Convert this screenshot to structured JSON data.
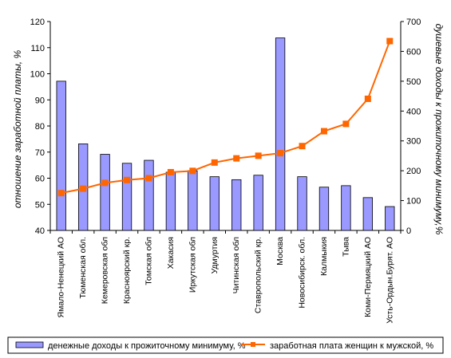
{
  "chart_data": {
    "type": "bar+line",
    "categories": [
      "Ямало-Ненецкий АО",
      "Тюменская обл.",
      "Кемеровская обл",
      "Красноярский кр.",
      "Томская обл",
      "Хакасия",
      "Иркутская обл",
      "Удмуртия",
      "Читинская обл",
      "Ставропольский кр.",
      "Москва",
      "Новосибирск. обл.",
      "Калмыкия",
      "Тыва",
      "Коми-Пермяцкий АО",
      "Усть-Ордын.Бурят. АО"
    ],
    "series": [
      {
        "name": "денежные доходы к прожиточному минимуму, %",
        "type": "bar",
        "axis": "right",
        "color": "#9999ff",
        "values": [
          500,
          290,
          255,
          225,
          235,
          195,
          200,
          180,
          170,
          185,
          645,
          180,
          145,
          150,
          110,
          80
        ]
      },
      {
        "name": "заработная плата женщин к мужской, %",
        "type": "line",
        "axis": "left",
        "color": "#ff6600",
        "values": [
          54.3,
          56,
          58.2,
          59.3,
          60,
          62.3,
          62.8,
          66,
          67.6,
          68.6,
          69.6,
          72.3,
          78,
          80.8,
          90.4,
          112.5
        ]
      }
    ],
    "ylabel_left": "отношение заработной платы, %",
    "ylabel_right": "душевые доходы к прожиточному минимуму,%",
    "ylim_left": [
      40,
      120
    ],
    "yticks_left": [
      40,
      50,
      60,
      70,
      80,
      90,
      100,
      110,
      120
    ],
    "ylim_right": [
      0,
      700
    ],
    "yticks_right": [
      0,
      100,
      200,
      300,
      400,
      500,
      600,
      700
    ],
    "grid": false,
    "legend_position": "bottom"
  }
}
